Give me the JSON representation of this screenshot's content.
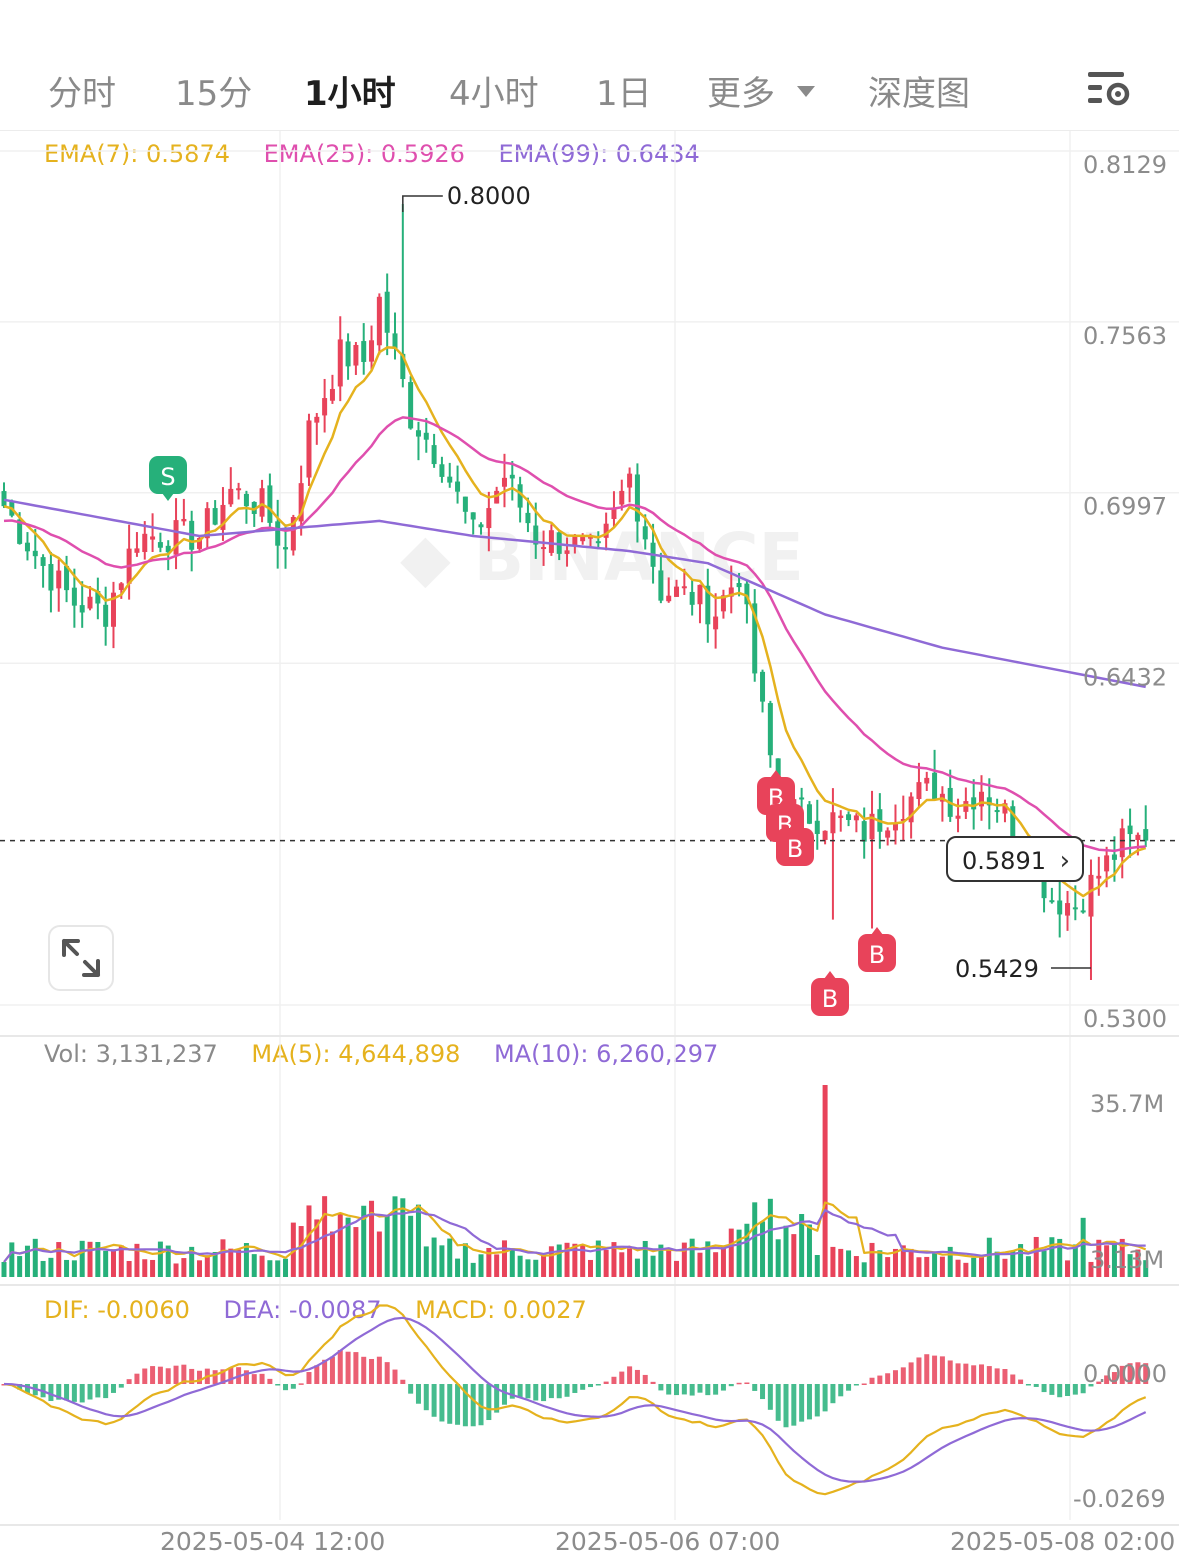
{
  "tabs": {
    "items": [
      "分时",
      "15分",
      "1小时",
      "4小时",
      "1日",
      "更多",
      "深度图"
    ],
    "active": "1小时"
  },
  "colors": {
    "up": "#e8435a",
    "down": "#26b07a",
    "ema7": "#e5b21e",
    "ema25": "#df4fae",
    "ema99": "#8f6ad6",
    "dif": "#e5b21e",
    "dea": "#8f6ad6",
    "grid": "#f0f0f0",
    "axis_text": "#8c8c8c"
  },
  "legends": {
    "ema7": "EMA(7): 0.5874",
    "ema25": "EMA(25): 0.5926",
    "ema99": "EMA(99): 0.6434",
    "vol": "Vol: 3,131,237",
    "vol_ma5": "MA(5): 4,644,898",
    "vol_ma10": "MA(10): 6,260,297",
    "dif": "DIF: -0.0060",
    "dea": "DEA: -0.0087",
    "macd": "MACD: 0.0027"
  },
  "price_tag": "0.5891",
  "icons": {
    "settings": "chart-settings-icon",
    "expand": "expand-icon",
    "chevron": "chevron-right-icon"
  },
  "chart_data": [
    {
      "type": "candlestick",
      "title": "",
      "price_axis_ticks": [
        "0.8129",
        "0.7563",
        "0.6997",
        "0.6432",
        "0.5300"
      ],
      "ylim": [
        0.53,
        0.8129
      ],
      "x_axis_ticks": [
        "2025-05-04 12:00",
        "2025-05-06 07:00",
        "2025-05-08 02:00"
      ],
      "annotations": {
        "high": "0.8000",
        "low": "0.5429",
        "current_price": "0.5891"
      },
      "markers": [
        {
          "label": "S",
          "index": 20
        },
        {
          "label": "B",
          "index": 98
        },
        {
          "label": "B",
          "index": 99
        },
        {
          "label": "B",
          "index": 100
        },
        {
          "label": "B",
          "index": 104
        },
        {
          "label": "B",
          "index": 110
        }
      ],
      "series": [
        {
          "name": "EMA(7)",
          "last": 0.5874
        },
        {
          "name": "EMA(25)",
          "last": 0.5926
        },
        {
          "name": "EMA(99)",
          "last": 0.6434
        }
      ],
      "keypoints": [
        [
          0,
          0.7
        ],
        [
          5,
          0.68
        ],
        [
          9,
          0.668
        ],
        [
          13,
          0.665
        ],
        [
          17,
          0.69
        ],
        [
          21,
          0.69
        ],
        [
          25,
          0.69
        ],
        [
          29,
          0.705
        ],
        [
          33,
          0.7
        ],
        [
          36,
          0.685
        ],
        [
          39,
          0.725
        ],
        [
          43,
          0.75
        ],
        [
          46,
          0.748
        ],
        [
          48,
          0.768
        ],
        [
          52,
          0.73
        ],
        [
          56,
          0.715
        ],
        [
          60,
          0.69
        ],
        [
          64,
          0.71
        ],
        [
          68,
          0.69
        ],
        [
          72,
          0.688
        ],
        [
          76,
          0.683
        ],
        [
          80,
          0.71
        ],
        [
          84,
          0.672
        ],
        [
          88,
          0.67
        ],
        [
          91,
          0.665
        ],
        [
          94,
          0.678
        ],
        [
          96,
          0.645
        ],
        [
          99,
          0.602
        ],
        [
          102,
          0.598
        ],
        [
          106,
          0.596
        ],
        [
          110,
          0.592
        ],
        [
          115,
          0.602
        ],
        [
          119,
          0.607
        ],
        [
          122,
          0.6
        ],
        [
          125,
          0.607
        ],
        [
          128,
          0.598
        ],
        [
          131,
          0.585
        ],
        [
          134,
          0.57
        ],
        [
          137,
          0.568
        ],
        [
          140,
          0.578
        ],
        [
          143,
          0.588
        ],
        [
          146,
          0.59
        ]
      ],
      "ema99_points": [
        [
          0,
          0.702
        ],
        [
          25,
          0.69
        ],
        [
          48,
          0.695
        ],
        [
          60,
          0.69
        ],
        [
          80,
          0.685
        ],
        [
          90,
          0.681
        ],
        [
          105,
          0.664
        ],
        [
          120,
          0.653
        ],
        [
          134,
          0.646
        ],
        [
          146,
          0.64
        ]
      ]
    },
    {
      "type": "bar",
      "title": "Volume",
      "y_axis_ticks": [
        "35.7M",
        "3.13M"
      ],
      "ylim": [
        0,
        35700000
      ],
      "series": [
        {
          "name": "Vol",
          "last": 3131237
        },
        {
          "name": "MA(5)",
          "last": 4644898
        },
        {
          "name": "MA(10)",
          "last": 6260297
        }
      ],
      "spikes": [
        {
          "index": 105,
          "value": 35700000
        }
      ]
    },
    {
      "type": "line",
      "title": "MACD",
      "y_axis_ticks": [
        "0.0000",
        "-0.0269"
      ],
      "ylim": [
        -0.0269,
        0.0
      ],
      "series": [
        {
          "name": "DIF",
          "last": -0.006
        },
        {
          "name": "DEA",
          "last": -0.0087
        },
        {
          "name": "MACD",
          "last": 0.0027
        }
      ]
    }
  ]
}
